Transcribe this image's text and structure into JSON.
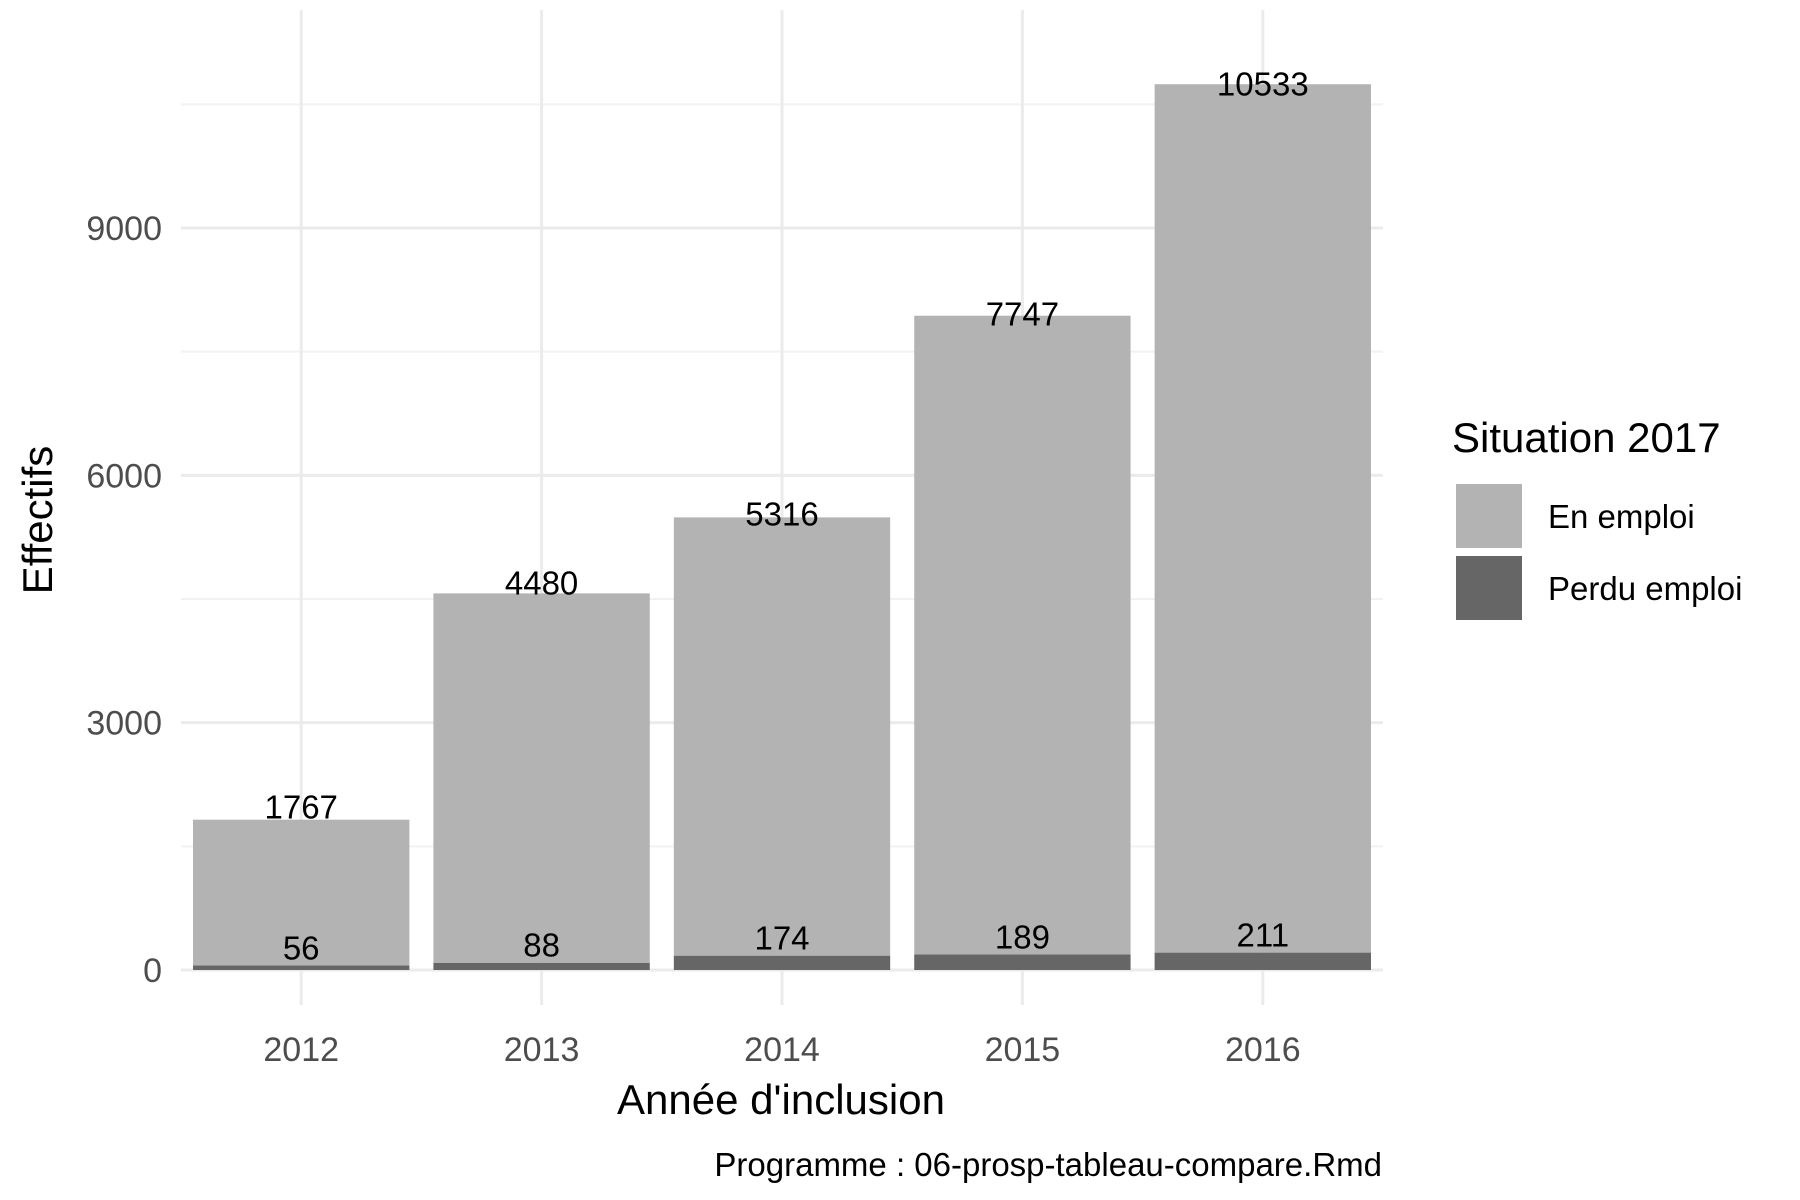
{
  "chart_data": {
    "type": "bar",
    "stacked": true,
    "categories": [
      "2012",
      "2013",
      "2014",
      "2015",
      "2016"
    ],
    "series": [
      {
        "name": "Perdu emploi",
        "values": [
          56,
          88,
          174,
          189,
          211
        ],
        "color": "#666666"
      },
      {
        "name": "En emploi",
        "values": [
          1767,
          4480,
          5316,
          7747,
          10533
        ],
        "color": "#b3b3b3"
      }
    ],
    "title": "",
    "xlabel": "Année d'inclusion",
    "ylabel": "Effectifs",
    "ylim": [
      -400,
      11100
    ],
    "yticks": [
      0,
      3000,
      6000,
      9000
    ],
    "grid": true,
    "legend": {
      "title": "Situation 2017",
      "placement": "right",
      "items": [
        "En emploi",
        "Perdu emploi"
      ]
    },
    "caption": "Programme : 06-prosp-tableau-compare.Rmd"
  }
}
